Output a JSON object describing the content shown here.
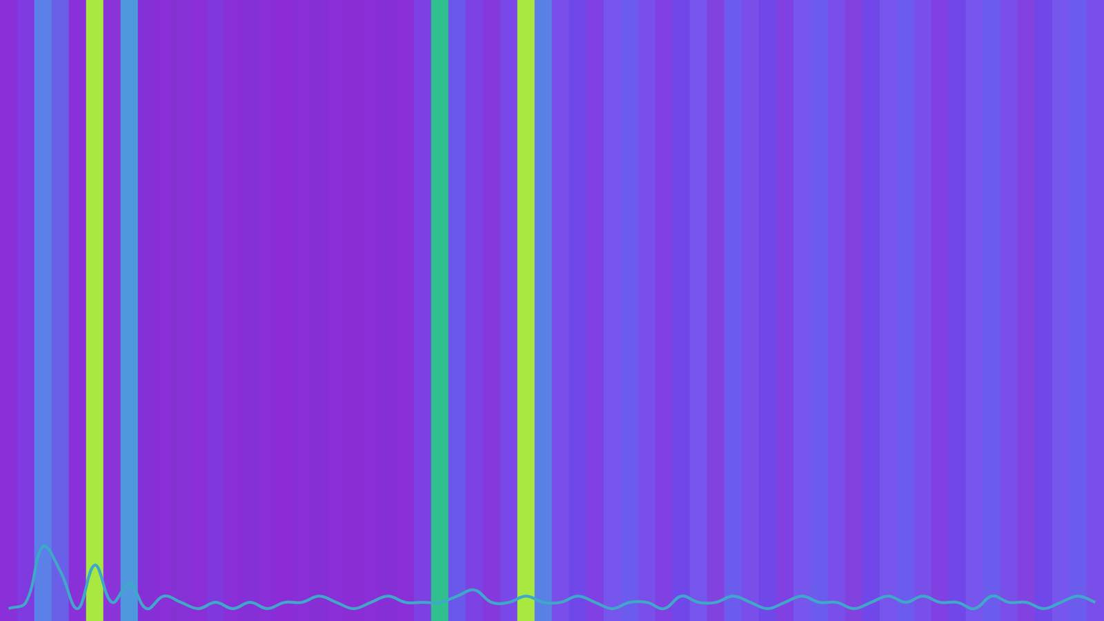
{
  "chart_data": {
    "type": "bar",
    "grid": false,
    "tick_labels": false,
    "ylim": [
      0,
      100
    ],
    "categories": [
      null,
      null,
      null,
      null,
      null,
      null,
      null,
      null,
      null,
      null,
      null,
      null,
      null,
      null,
      null,
      null,
      null,
      null,
      null,
      null,
      null,
      null,
      null,
      null,
      null,
      null,
      null,
      null,
      null,
      null,
      null,
      null,
      null,
      null,
      null,
      null,
      null,
      null,
      null,
      null,
      null,
      null,
      null,
      null,
      null,
      null,
      null,
      null,
      null,
      null,
      null,
      null,
      null,
      null,
      null,
      null,
      null,
      null,
      null,
      null,
      null,
      null,
      null,
      null
    ],
    "series": [
      {
        "type": "bar",
        "values": [
          100,
          100,
          100,
          100,
          100,
          100,
          100,
          100,
          100,
          100,
          100,
          100,
          100,
          100,
          100,
          100,
          100,
          100,
          100,
          100,
          100,
          100,
          100,
          100,
          100,
          100,
          100,
          100,
          100,
          100,
          100,
          100,
          100,
          100,
          100,
          100,
          100,
          100,
          100,
          100,
          100,
          100,
          100,
          100,
          100,
          100,
          100,
          100,
          100,
          100,
          100,
          100,
          100,
          100,
          100,
          100,
          100,
          100,
          100,
          100,
          100,
          100,
          100,
          100
        ],
        "colors": [
          "#8a30d8",
          "#7f3ae0",
          "#5b80e8",
          "#6a60e8",
          "#8a30d8",
          "#a8e840",
          "#8a35da",
          "#4f98de",
          "#8530d6",
          "#8a2ed8",
          "#8532d4",
          "#8a2ed8",
          "#7f38dc",
          "#8a2ed8",
          "#8430d6",
          "#8a2ed8",
          "#8c2cd6",
          "#8a2ed8",
          "#852fd4",
          "#8a2ed8",
          "#8c2cd4",
          "#8a2ed8",
          "#872fd6",
          "#8a2ed8",
          "#7d40e2",
          "#30c090",
          "#6a58ea",
          "#7c42e4",
          "#8538dc",
          "#7a48e6",
          "#a8e840",
          "#5a80e6",
          "#7a4ee8",
          "#7048ea",
          "#8040e2",
          "#7656ec",
          "#6c5cee",
          "#7a4ee8",
          "#8040e2",
          "#7048ea",
          "#7656ec",
          "#8242e0",
          "#6c5cee",
          "#7a4ee8",
          "#7048ea",
          "#8040e2",
          "#7656ec",
          "#6c5cee",
          "#7a4ee8",
          "#8242e0",
          "#7048ea",
          "#7656ec",
          "#6c5cee",
          "#7a4ee8",
          "#8040e2",
          "#7048ea",
          "#7656ec",
          "#6c5cee",
          "#7a4ee8",
          "#8242e0",
          "#7048ea",
          "#7656ec",
          "#6c5cee",
          "#7a4ee8"
        ]
      },
      {
        "type": "line",
        "color": "#3fa8c8",
        "values": [
          2,
          3,
          12,
          8,
          2,
          9,
          3,
          6,
          2,
          4,
          3,
          2,
          3,
          2,
          3,
          2,
          3,
          3,
          4,
          3,
          2,
          3,
          4,
          3,
          3,
          3,
          4,
          5,
          3,
          3,
          4,
          3,
          3,
          4,
          3,
          2,
          3,
          3,
          2,
          4,
          3,
          3,
          4,
          3,
          2,
          3,
          4,
          3,
          3,
          2,
          3,
          4,
          3,
          4,
          3,
          3,
          2,
          4,
          3,
          3,
          2,
          3,
          4,
          3
        ]
      }
    ]
  }
}
